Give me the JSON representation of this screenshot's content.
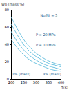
{
  "chart_data": {
    "type": "line",
    "y_label": "Wb (mass %)",
    "x_label": "T(K)",
    "x": [
      200,
      225,
      250,
      275,
      300,
      325,
      350,
      375,
      400
    ],
    "series": [
      {
        "color": "#6ec3e0",
        "values": [
          72,
          58,
          46,
          37,
          30,
          25,
          21,
          18,
          16
        ]
      },
      {
        "color": "#6ec3e0",
        "values": [
          64,
          51,
          40,
          32,
          26,
          22,
          18,
          16,
          14
        ]
      },
      {
        "color": "#6ec3e0",
        "values": [
          55,
          43,
          34,
          27,
          22,
          18,
          15,
          13,
          11
        ]
      },
      {
        "color": "#6ec3e0",
        "values": [
          46,
          36,
          28,
          22,
          18,
          15,
          12,
          10,
          9
        ]
      }
    ],
    "xlim": [
      200,
      400
    ],
    "xticks": [
      200,
      250,
      300,
      350,
      400
    ],
    "ylim": [
      0,
      80
    ],
    "yticks": [
      0,
      20,
      40,
      60,
      80
    ],
    "grid": false,
    "annotations": [
      {
        "text": "Np/Nf = 5",
        "x": 318,
        "y": 72
      },
      {
        "text": "P = 20 MPa",
        "x": 300,
        "y": 50
      },
      {
        "text": "P = 10 MPa",
        "x": 300,
        "y": 38
      },
      {
        "text": "1% (mass)",
        "x": 204,
        "y": 4
      },
      {
        "text": "3% (mass)",
        "x": 328,
        "y": 4
      }
    ]
  }
}
